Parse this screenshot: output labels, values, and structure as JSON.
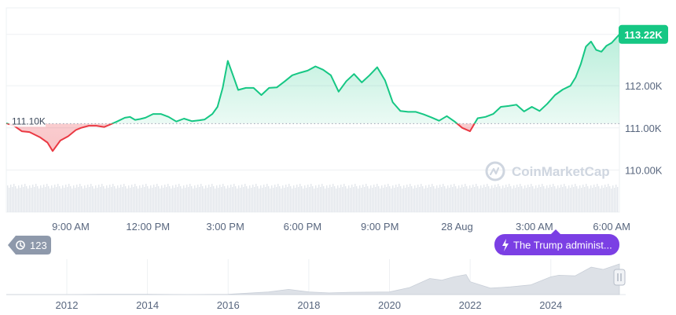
{
  "chart_data": {
    "type": "area",
    "colors": {
      "up": "#16c784",
      "down": "#ea3943",
      "event": "#7b3fe4",
      "grid": "#eef0f3"
    },
    "y_axis": {
      "ticks": [
        "110.00K",
        "111.00K",
        "112.00K"
      ],
      "tick_values": [
        110000,
        111000,
        112000
      ],
      "range": [
        109000,
        113850
      ]
    },
    "x_axis": {
      "ticks": [
        "9:00 AM",
        "12:00 PM",
        "3:00 PM",
        "6:00 PM",
        "9:00 PM",
        "28 Aug",
        "3:00 AM",
        "6:00 AM"
      ],
      "tick_hours": [
        9,
        12,
        15,
        18,
        21,
        24,
        27,
        30
      ],
      "range_hours": [
        6.5,
        30.3
      ]
    },
    "reference": {
      "label": "111.10K",
      "value": 111100
    },
    "current_price": {
      "label": "113.22K",
      "value": 113220
    },
    "series": [
      {
        "hours": [
          6.5,
          6.8,
          7.1,
          7.4,
          7.8,
          8.1,
          8.3,
          8.6,
          8.9,
          9.2,
          9.4,
          9.7,
          10.0,
          10.3,
          10.5,
          10.8,
          11.1,
          11.3,
          11.5,
          11.7,
          11.9,
          12.2,
          12.5,
          12.8,
          13.1,
          13.4,
          13.7,
          14.0,
          14.2,
          14.5,
          14.7,
          14.9,
          15.1,
          15.3,
          15.5,
          15.8,
          16.1,
          16.4,
          16.7,
          17.0,
          17.3,
          17.6,
          17.9,
          18.2,
          18.5,
          18.8,
          19.1,
          19.4,
          19.7,
          20.0,
          20.3,
          20.6,
          20.9,
          21.2,
          21.5,
          21.8,
          22.1,
          22.4,
          22.7,
          23.0,
          23.3,
          23.6,
          23.9,
          24.2,
          24.5,
          24.8,
          25.1,
          25.4,
          25.7,
          26.0,
          26.3,
          26.6,
          26.9,
          27.2,
          27.5,
          27.8,
          28.1,
          28.4,
          28.6,
          28.8,
          29.0,
          29.2,
          29.4,
          29.6,
          29.8,
          30.0,
          30.3
        ],
        "values": [
          111110,
          111050,
          110920,
          110900,
          110780,
          110650,
          110450,
          110700,
          110800,
          110950,
          111000,
          111050,
          111050,
          111020,
          111070,
          111150,
          111240,
          111260,
          111190,
          111210,
          111240,
          111330,
          111330,
          111260,
          111150,
          111220,
          111160,
          111180,
          111200,
          111330,
          111500,
          111950,
          112590,
          112250,
          111900,
          111950,
          111950,
          111780,
          111950,
          111960,
          112100,
          112250,
          112310,
          112360,
          112460,
          112380,
          112250,
          111860,
          112110,
          112280,
          112080,
          112250,
          112440,
          112130,
          111610,
          111400,
          111380,
          111380,
          111320,
          111250,
          111170,
          111280,
          111150,
          111000,
          110920,
          111230,
          111260,
          111330,
          111500,
          111520,
          111550,
          111390,
          111500,
          111400,
          111570,
          111780,
          111910,
          112000,
          112200,
          112510,
          112930,
          113050,
          112850,
          112810,
          112950,
          113020,
          113220
        ]
      }
    ],
    "watermark": "CoinMarketCap",
    "event_badge": {
      "icon": "lightning-icon",
      "text": "The Trump administ..."
    },
    "history_badge": {
      "icon": "history-icon",
      "text": "123"
    },
    "navigator": {
      "year_ticks": [
        "2012",
        "2014",
        "2016",
        "2018",
        "2020",
        "2022",
        "2024"
      ],
      "tick_years": [
        2012,
        2014,
        2016,
        2018,
        2020,
        2022,
        2024
      ],
      "range_years": [
        2010.5,
        2025.7
      ],
      "years": [
        2010.5,
        2012,
        2013,
        2014,
        2015,
        2016,
        2017,
        2017.5,
        2018,
        2018.5,
        2019,
        2020,
        2020.5,
        2021,
        2021.3,
        2021.6,
        2021.9,
        2022,
        2022.5,
        2023,
        2023.5,
        2024,
        2024.2,
        2024.6,
        2025,
        2025.3,
        2025.7
      ],
      "values": [
        0.0,
        0.0,
        0.01,
        0.01,
        0.0,
        0.01,
        0.08,
        0.16,
        0.08,
        0.05,
        0.07,
        0.08,
        0.22,
        0.5,
        0.45,
        0.55,
        0.62,
        0.4,
        0.2,
        0.24,
        0.3,
        0.55,
        0.6,
        0.58,
        0.85,
        0.78,
        0.95
      ]
    }
  }
}
